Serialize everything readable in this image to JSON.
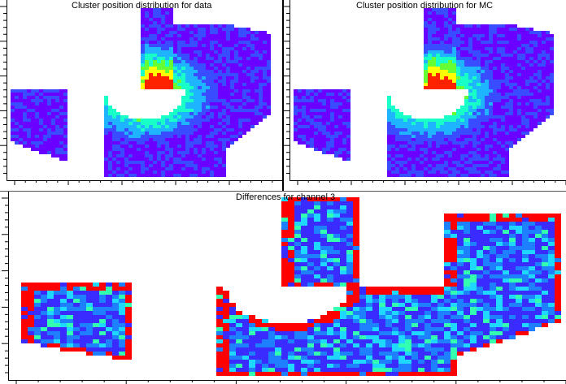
{
  "panels": [
    {
      "id": "data",
      "title": "Cluster position distribution for data"
    },
    {
      "id": "mc",
      "title": "Cluster position distribution for MC"
    },
    {
      "id": "diff",
      "title": "Differences for channel 3"
    }
  ],
  "chart_data": [
    {
      "type": "heatmap",
      "title": "Cluster position distribution for data",
      "xlabel": "",
      "ylabel": "",
      "palette": [
        "#6a00ff",
        "#3a4cff",
        "#1fb4ff",
        "#19ffc8",
        "#66ff33",
        "#ffff00",
        "#ff2200"
      ],
      "grid": false,
      "detector_regions": [
        "left trapezoid block",
        "central arc with inner hole",
        "upper vertical stripe",
        "right fan block"
      ],
      "hotspot": "inner edge of central arc (red)"
    },
    {
      "type": "heatmap",
      "title": "Cluster position distribution for MC",
      "xlabel": "",
      "ylabel": "",
      "palette": [
        "#6a00ff",
        "#3a4cff",
        "#1fb4ff",
        "#19ffc8",
        "#66ff33",
        "#ffff00",
        "#ff2200"
      ],
      "grid": false,
      "detector_regions": [
        "left trapezoid block",
        "central arc with inner hole",
        "upper vertical stripe",
        "right fan block"
      ],
      "hotspot": "inner edge of central arc (red)"
    },
    {
      "type": "heatmap",
      "title": "Differences for channel 3",
      "xlabel": "",
      "ylabel": "",
      "palette": [
        "#3a2cff",
        "#1f80ff",
        "#1fd8ff",
        "#33ffb0",
        "#ff0000"
      ],
      "grid": false,
      "detector_regions": [
        "left trapezoid block",
        "central arc with inner hole",
        "upper vertical stripe",
        "right fan block"
      ],
      "boundary_color": "#ff0000"
    }
  ]
}
